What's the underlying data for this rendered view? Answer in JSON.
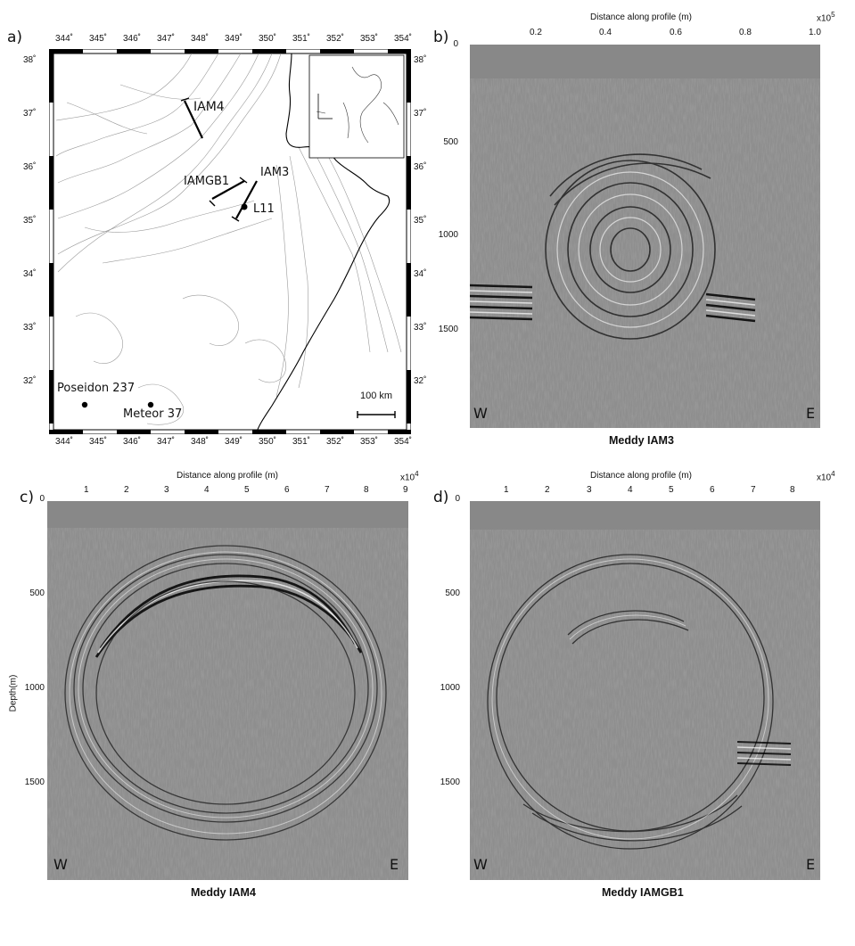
{
  "figure": {
    "panel_a": {
      "letter": "a)",
      "lon_ticks": [
        "344˚",
        "345˚",
        "346˚",
        "347˚",
        "348˚",
        "349˚",
        "350˚",
        "351˚",
        "352˚",
        "353˚",
        "354˚"
      ],
      "lat_ticks": [
        "38˚",
        "37˚",
        "36˚",
        "35˚",
        "34˚",
        "33˚",
        "32˚"
      ],
      "labels": {
        "iam4": "IAM4",
        "iam3": "IAM3",
        "iamgb1": "IAMGB1",
        "l11": "L11",
        "poseidon": "Poseidon 237",
        "meteor": "Meteor 37",
        "scale": "100 km"
      }
    },
    "panel_b": {
      "letter": "b)",
      "x_title": "Distance along profile (m)",
      "x_ticks": [
        "0.2",
        "0.4",
        "0.6",
        "0.8",
        "1.0"
      ],
      "x_exp": "x10",
      "x_exp_power": "5",
      "y_ticks": [
        "0",
        "500",
        "1000",
        "1500"
      ],
      "west": "W",
      "east": "E",
      "caption": "Meddy IAM3"
    },
    "panel_c": {
      "letter": "c)",
      "x_title": "Distance along profile (m)",
      "x_ticks": [
        "1",
        "2",
        "3",
        "4",
        "5",
        "6",
        "7",
        "8",
        "9"
      ],
      "x_exp": "x10",
      "x_exp_power": "4",
      "y_title": "Depth(m)",
      "y_ticks": [
        "0",
        "500",
        "1000",
        "1500"
      ],
      "west": "W",
      "east": "E",
      "caption": "Meddy IAM4"
    },
    "panel_d": {
      "letter": "d)",
      "x_title": "Distance along profile (m)",
      "x_ticks": [
        "1",
        "2",
        "3",
        "4",
        "5",
        "6",
        "7",
        "8"
      ],
      "x_exp": "x10",
      "x_exp_power": "4",
      "y_ticks": [
        "0",
        "500",
        "1000",
        "1500"
      ],
      "west": "W",
      "east": "E",
      "caption": "Meddy IAMGB1"
    }
  },
  "colors": {
    "seismic_bg": "#8e8e8e",
    "water": "#8a8a8a",
    "frame": "#000000"
  }
}
